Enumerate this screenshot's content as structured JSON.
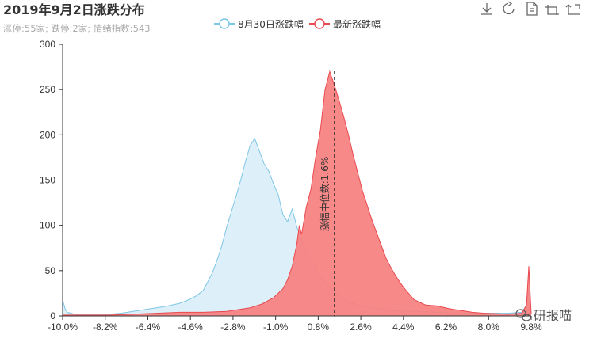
{
  "title": "2019年9月2日涨跌分布",
  "subtitle": "涨停:55家; 跌停:2家; 情绪指数:543",
  "toolbox": [
    "download-icon",
    "refresh-icon",
    "data-view-icon",
    "zoom-icon",
    "zoom-reset-icon"
  ],
  "watermark": "研报喵",
  "chart_data": {
    "type": "area",
    "x_tick_labels": [
      "-10.0%",
      "-8.2%",
      "-6.4%",
      "-4.6%",
      "-2.8%",
      "-1.0%",
      "0.8%",
      "2.6%",
      "4.4%",
      "6.2%",
      "8.0%",
      "9.8%"
    ],
    "xlim": [
      -10,
      10
    ],
    "ylim": [
      0,
      300
    ],
    "y_ticks": [
      0,
      50,
      100,
      150,
      200,
      250,
      300
    ],
    "legend_position": "top-center",
    "median_marker": {
      "x": 1.6,
      "label": "涨幅中位数:1.6%"
    },
    "series": [
      {
        "name": "8月30日涨跌幅",
        "color": "#7ec6e6",
        "fill": "#ddf0fa",
        "points": [
          [
            -10.0,
            18
          ],
          [
            -9.9,
            8
          ],
          [
            -9.8,
            4
          ],
          [
            -9.5,
            2
          ],
          [
            -9.0,
            2
          ],
          [
            -8.5,
            2
          ],
          [
            -8.0,
            2
          ],
          [
            -7.5,
            3
          ],
          [
            -7.0,
            5
          ],
          [
            -6.5,
            7
          ],
          [
            -6.0,
            9
          ],
          [
            -5.5,
            11
          ],
          [
            -5.0,
            14
          ],
          [
            -4.6,
            18
          ],
          [
            -4.3,
            22
          ],
          [
            -4.0,
            28
          ],
          [
            -3.8,
            38
          ],
          [
            -3.6,
            48
          ],
          [
            -3.4,
            62
          ],
          [
            -3.2,
            78
          ],
          [
            -3.0,
            98
          ],
          [
            -2.8,
            115
          ],
          [
            -2.6,
            132
          ],
          [
            -2.4,
            150
          ],
          [
            -2.2,
            170
          ],
          [
            -2.0,
            188
          ],
          [
            -1.8,
            196
          ],
          [
            -1.6,
            182
          ],
          [
            -1.4,
            168
          ],
          [
            -1.2,
            160
          ],
          [
            -1.0,
            146
          ],
          [
            -0.8,
            134
          ],
          [
            -0.6,
            112
          ],
          [
            -0.4,
            104
          ],
          [
            -0.2,
            118
          ],
          [
            0.0,
            98
          ],
          [
            0.2,
            84
          ],
          [
            0.4,
            72
          ],
          [
            0.6,
            62
          ],
          [
            0.8,
            52
          ],
          [
            1.0,
            44
          ],
          [
            1.2,
            38
          ],
          [
            1.4,
            32
          ],
          [
            1.6,
            27
          ],
          [
            1.8,
            22
          ],
          [
            2.0,
            18
          ],
          [
            2.2,
            16
          ],
          [
            2.4,
            14
          ],
          [
            2.6,
            12
          ],
          [
            3.0,
            10
          ],
          [
            3.5,
            8
          ],
          [
            4.0,
            6
          ],
          [
            5.0,
            5
          ],
          [
            6.0,
            4
          ],
          [
            7.0,
            3
          ],
          [
            8.0,
            3
          ],
          [
            9.0,
            3
          ],
          [
            9.6,
            4
          ],
          [
            9.8,
            12
          ],
          [
            9.9,
            30
          ],
          [
            10.0,
            2
          ]
        ]
      },
      {
        "name": "最新涨跌幅",
        "color": "#e84a4f",
        "fill": "#f77f7f",
        "points": [
          [
            -10.0,
            1
          ],
          [
            -9.0,
            1
          ],
          [
            -8.0,
            1
          ],
          [
            -7.0,
            2
          ],
          [
            -6.0,
            3
          ],
          [
            -5.0,
            4
          ],
          [
            -4.0,
            4
          ],
          [
            -3.0,
            5
          ],
          [
            -2.5,
            7
          ],
          [
            -2.0,
            9
          ],
          [
            -1.5,
            13
          ],
          [
            -1.0,
            20
          ],
          [
            -0.6,
            30
          ],
          [
            -0.4,
            40
          ],
          [
            -0.2,
            55
          ],
          [
            0.0,
            80
          ],
          [
            0.1,
            100
          ],
          [
            0.2,
            90
          ],
          [
            0.4,
            120
          ],
          [
            0.6,
            140
          ],
          [
            0.8,
            175
          ],
          [
            1.0,
            205
          ],
          [
            1.2,
            250
          ],
          [
            1.4,
            270
          ],
          [
            1.6,
            255
          ],
          [
            1.8,
            238
          ],
          [
            2.0,
            220
          ],
          [
            2.2,
            200
          ],
          [
            2.4,
            178
          ],
          [
            2.6,
            158
          ],
          [
            2.8,
            138
          ],
          [
            3.0,
            122
          ],
          [
            3.2,
            106
          ],
          [
            3.4,
            92
          ],
          [
            3.6,
            78
          ],
          [
            3.8,
            64
          ],
          [
            4.0,
            54
          ],
          [
            4.2,
            45
          ],
          [
            4.4,
            37
          ],
          [
            4.6,
            30
          ],
          [
            4.8,
            24
          ],
          [
            5.0,
            18
          ],
          [
            5.5,
            12
          ],
          [
            6.0,
            11
          ],
          [
            6.5,
            8
          ],
          [
            7.0,
            6
          ],
          [
            7.5,
            4
          ],
          [
            8.0,
            3
          ],
          [
            9.0,
            2
          ],
          [
            9.6,
            3
          ],
          [
            9.8,
            12
          ],
          [
            9.9,
            55
          ],
          [
            10.0,
            2
          ]
        ]
      }
    ]
  }
}
